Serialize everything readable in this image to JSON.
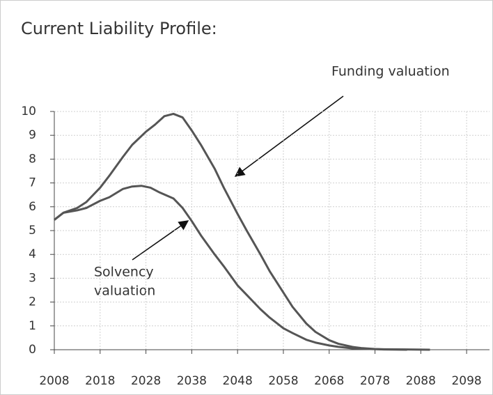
{
  "chart_data": {
    "type": "line",
    "title": "Current Liability Profile:",
    "annotations": [
      "Funding valuation",
      "Solvency",
      "valuation"
    ],
    "xlim": [
      2008,
      2103
    ],
    "ylim": [
      0,
      10
    ],
    "xticks": [
      2008,
      2018,
      2028,
      2038,
      2048,
      2058,
      2068,
      2078,
      2088,
      2098
    ],
    "yticks": [
      0,
      1,
      2,
      3,
      4,
      5,
      6,
      7,
      8,
      9,
      10
    ],
    "grid": true,
    "series": [
      {
        "name": "Funding valuation",
        "color": "#555555",
        "x": [
          2008,
          2010,
          2013,
          2015,
          2018,
          2020,
          2023,
          2025,
          2028,
          2030,
          2032,
          2034,
          2036,
          2038,
          2040,
          2043,
          2045,
          2048,
          2050,
          2053,
          2055,
          2058,
          2060,
          2063,
          2065,
          2068,
          2070,
          2073,
          2075,
          2078,
          2080,
          2085,
          2090
        ],
        "values": [
          5.45,
          5.75,
          5.95,
          6.2,
          6.8,
          7.3,
          8.1,
          8.6,
          9.15,
          9.45,
          9.8,
          9.9,
          9.75,
          9.2,
          8.6,
          7.6,
          6.8,
          5.7,
          5.0,
          4.0,
          3.3,
          2.4,
          1.8,
          1.1,
          0.75,
          0.4,
          0.25,
          0.12,
          0.07,
          0.03,
          0.02,
          0.01,
          0
        ]
      },
      {
        "name": "Solvency valuation",
        "color": "#555555",
        "x": [
          2008,
          2010,
          2013,
          2015,
          2018,
          2020,
          2023,
          2025,
          2027,
          2029,
          2031,
          2034,
          2036,
          2038,
          2040,
          2043,
          2045,
          2048,
          2050,
          2053,
          2055,
          2058,
          2060,
          2063,
          2065,
          2068,
          2070,
          2073,
          2075,
          2080,
          2085
        ],
        "values": [
          5.45,
          5.75,
          5.85,
          5.95,
          6.25,
          6.4,
          6.75,
          6.85,
          6.88,
          6.8,
          6.6,
          6.35,
          5.95,
          5.4,
          4.8,
          4.0,
          3.5,
          2.7,
          2.3,
          1.7,
          1.35,
          0.9,
          0.7,
          0.42,
          0.3,
          0.18,
          0.12,
          0.06,
          0.04,
          0.01,
          0
        ]
      }
    ]
  }
}
